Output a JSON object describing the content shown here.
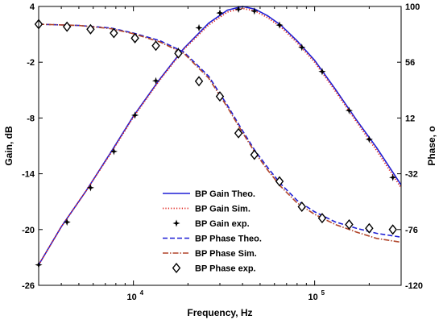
{
  "chart_data": {
    "type": "line",
    "xscale": "log",
    "xlim": [
      3000,
      300000
    ],
    "xlabel": "Frequency, Hz",
    "ylabel_left": "Gain, dB",
    "ylabel_right": "Phase, o",
    "ylim_left": [
      -26,
      4
    ],
    "ylim_right": [
      -120,
      100
    ],
    "x_ticks": [
      {
        "value": 10000,
        "base": "10",
        "exp": "4"
      },
      {
        "value": 100000,
        "base": "10",
        "exp": "5"
      }
    ],
    "y_ticks_left": [
      "4",
      "-2",
      "-8",
      "-14",
      "-20",
      "-26"
    ],
    "y_ticks_right": [
      "100",
      "56",
      "12",
      "-32",
      "-76",
      "-120"
    ],
    "grid": false,
    "legend_position": "lower-center",
    "colors": {
      "blue": "#1f1fd6",
      "red": "#e0241d",
      "brown": "#b0442a",
      "black": "#000000"
    },
    "series": [
      {
        "name": "BP Gain Theo.",
        "axis": "left",
        "style": "solid",
        "color": "#1f1fd6",
        "x": [
          3000,
          4000,
          5500,
          7500,
          10000,
          14000,
          19000,
          26000,
          33000,
          40000,
          47000,
          55000,
          65000,
          80000,
          100000,
          130000,
          170000,
          220000,
          300000
        ],
        "y": [
          -23.8,
          -19.7,
          -15.8,
          -11.7,
          -7.8,
          -3.8,
          -0.5,
          2.2,
          3.6,
          4.0,
          3.7,
          3.0,
          2.0,
          0.3,
          -1.8,
          -4.9,
          -8.2,
          -11.2,
          -15.2
        ]
      },
      {
        "name": "BP Gain Sim.",
        "axis": "left",
        "style": "dotted",
        "color": "#e0241d",
        "x": [
          3000,
          4000,
          5500,
          7500,
          10000,
          14000,
          19000,
          26000,
          33000,
          40000,
          47000,
          55000,
          65000,
          80000,
          100000,
          130000,
          170000,
          220000,
          300000
        ],
        "y": [
          -23.8,
          -19.7,
          -15.8,
          -11.8,
          -7.9,
          -3.9,
          -0.6,
          2.0,
          3.4,
          3.8,
          3.5,
          2.8,
          1.8,
          0.1,
          -2.0,
          -5.1,
          -8.4,
          -11.5,
          -15.5
        ]
      },
      {
        "name": "BP Gain exp.",
        "axis": "left",
        "style": "marker-star",
        "color": "#000000",
        "x": [
          3000,
          4300,
          5800,
          7800,
          10200,
          13300,
          17700,
          23000,
          30000,
          38000,
          46500,
          64000,
          85000,
          110000,
          155000,
          200000,
          270000
        ],
        "y": [
          -23.8,
          -19.2,
          -15.5,
          -11.6,
          -7.7,
          -4.0,
          -0.8,
          1.7,
          3.3,
          3.7,
          3.5,
          2.0,
          -0.4,
          -3.0,
          -7.2,
          -10.3,
          -14.4
        ]
      },
      {
        "name": "BP Phase Theo.",
        "axis": "right",
        "style": "dashed",
        "color": "#1f1fd6",
        "x": [
          3000,
          5000,
          7500,
          10000,
          14000,
          19000,
          26000,
          33000,
          40000,
          47000,
          55000,
          65000,
          80000,
          100000,
          130000,
          170000,
          220000,
          300000
        ],
        "y": [
          86,
          85,
          83,
          79,
          73,
          64,
          45,
          22,
          2,
          -14,
          -27,
          -40,
          -53,
          -62,
          -70,
          -75,
          -79,
          -82
        ]
      },
      {
        "name": "BP Phase Sim.",
        "axis": "right",
        "style": "dash-dot",
        "color": "#b0442a",
        "x": [
          3000,
          5000,
          7500,
          10000,
          14000,
          19000,
          26000,
          33000,
          40000,
          47000,
          55000,
          65000,
          80000,
          100000,
          130000,
          170000,
          220000,
          300000
        ],
        "y": [
          86,
          85,
          82.5,
          78.5,
          72,
          63,
          43.5,
          20.5,
          0.5,
          -15.5,
          -29,
          -42,
          -55,
          -64,
          -72,
          -78,
          -83,
          -86
        ]
      },
      {
        "name": "BP Phase exp.",
        "axis": "right",
        "style": "marker-diamond",
        "color": "#000000",
        "x": [
          3000,
          4300,
          5800,
          7800,
          10200,
          13300,
          17700,
          23000,
          30000,
          38000,
          46500,
          64000,
          85000,
          110000,
          155000,
          200000,
          270000
        ],
        "y": [
          86,
          84,
          82,
          79,
          75,
          69,
          63,
          41,
          29,
          0,
          -17,
          -38,
          -58,
          -67,
          -72,
          -75,
          -76
        ]
      }
    ]
  }
}
